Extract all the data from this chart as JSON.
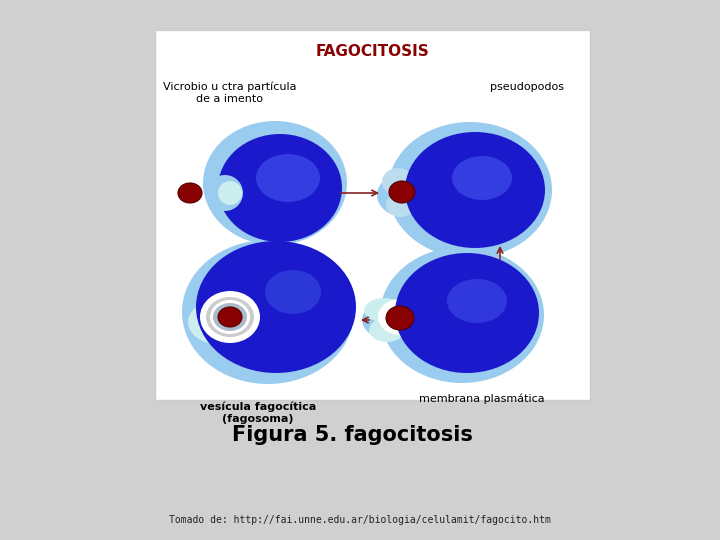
{
  "bg_color": "#d0d0d0",
  "panel_bg": "#ffffff",
  "title": "FAGOCITOSIS",
  "title_color": "#8B0000",
  "label_tl": "Vicrobio u ctra partícula\nde a imento",
  "label_tr": "pseudopodos",
  "label_bl": "vesícula fagocítica\n(fagosoma)",
  "label_br": "membrana plasmática",
  "caption": "Figura 5. fagocitosis",
  "source": "Tomado de: http://fai.unne.edu.ar/biologia/celulamit/fagocito.htm",
  "cell_blue_dark": "#1a1acc",
  "cell_blue_mid": "#3333cc",
  "cell_blue_light": "#99ccee",
  "cell_cyan_light": "#aaeedd",
  "particle_color": "#880000",
  "arrow_color": "#882222"
}
